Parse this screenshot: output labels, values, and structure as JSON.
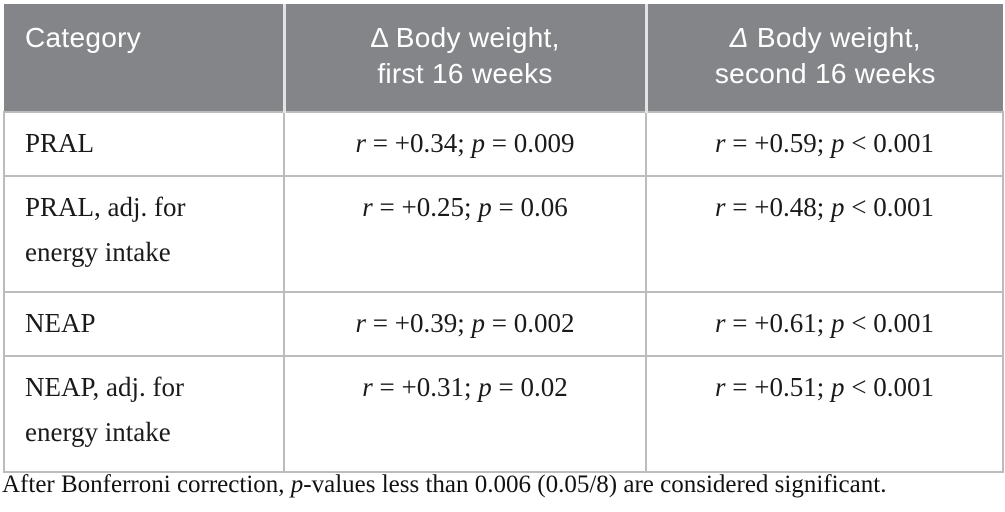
{
  "table": {
    "header": {
      "columns": [
        {
          "id": "category",
          "lines": [
            "Category",
            ""
          ]
        },
        {
          "id": "first16",
          "lines": [
            "Δ Body weight,",
            "first 16 weeks"
          ]
        },
        {
          "id": "second16",
          "lines": [
            "Δ Body weight,",
            "second 16 weeks"
          ]
        }
      ]
    },
    "rows": [
      {
        "category_lines": [
          "PRAL",
          ""
        ],
        "first16": "r = +0.34; p = 0.009",
        "second16": "r = +0.59; p < 0.001"
      },
      {
        "category_lines": [
          "PRAL, adj. for",
          "energy intake"
        ],
        "first16": "r = +0.25; p = 0.06",
        "second16": "r = +0.48; p < 0.001"
      },
      {
        "category_lines": [
          "NEAP",
          ""
        ],
        "first16": "r = +0.39; p = 0.002",
        "second16": "r = +0.61; p < 0.001"
      },
      {
        "category_lines": [
          "NEAP, adj. for",
          "energy intake"
        ],
        "first16": "r = +0.31; p = 0.02",
        "second16": "r = +0.51; p < 0.001"
      }
    ],
    "footnote": "After Bonferroni correction, p-values less than 0.006 (0.05/8) are considered significant."
  },
  "colors": {
    "header_bg": "#838588",
    "header_text": "#ffffff",
    "border": "#bcbcbc",
    "body_text": "#1a1a1a"
  }
}
